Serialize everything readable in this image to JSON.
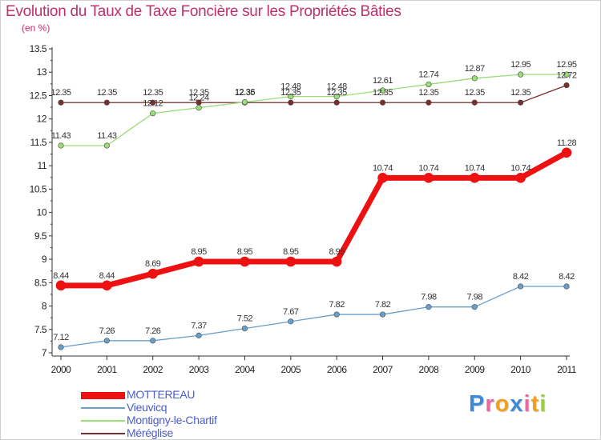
{
  "header": {
    "title": "Evolution du Taux de Taxe Foncière sur les Propriétés Bâties",
    "unit": "(en %)"
  },
  "chart_data": {
    "type": "line",
    "title": "Evolution du Taux de Taxe Foncière sur les Propriétés Bâties",
    "ylabel": "(en %)",
    "xlabel": "",
    "x": [
      "2000",
      "2001",
      "2002",
      "2003",
      "2004",
      "2005",
      "2006",
      "2007",
      "2008",
      "2009",
      "2010",
      "2011"
    ],
    "ylim": [
      7,
      13.5
    ],
    "yticks": [
      "7",
      "7.5",
      "8",
      "8.5",
      "9",
      "9.5",
      "10",
      "10.5",
      "11",
      "11.5",
      "12",
      "12.5",
      "13",
      "13.5"
    ],
    "grid": false,
    "legend_position": "bottom-left",
    "series": [
      {
        "name": "MOTTEREAU",
        "color": "#ee1111",
        "values": [
          8.44,
          8.44,
          8.69,
          8.95,
          8.95,
          8.95,
          8.95,
          10.74,
          10.74,
          10.74,
          10.74,
          11.28
        ],
        "labels": [
          "8.44",
          "8.44",
          "8.69",
          "8.95",
          "8.95",
          "8.95",
          "8.95",
          "10.74",
          "10.74",
          "10.74",
          "10.74",
          "11.28"
        ]
      },
      {
        "name": "Vieuvicq",
        "color": "#6a9fcc",
        "values": [
          7.12,
          7.26,
          7.26,
          7.37,
          7.52,
          7.67,
          7.82,
          7.82,
          7.98,
          7.98,
          8.42,
          8.42
        ],
        "labels": [
          "7.12",
          "7.26",
          "7.26",
          "7.37",
          "7.52",
          "7.67",
          "7.82",
          "7.82",
          "7.98",
          "7.98",
          "8.42",
          "8.42"
        ]
      },
      {
        "name": "Montigny-le-Chartif",
        "color": "#99dd77",
        "values": [
          11.43,
          11.43,
          12.12,
          12.24,
          12.36,
          12.48,
          12.48,
          12.61,
          12.74,
          12.87,
          12.95,
          12.95
        ],
        "labels": [
          "11.43",
          "11.43",
          "12.12",
          "12.24",
          "12.36",
          "12.48",
          "12.48",
          "12.61",
          "12.74",
          "12.87",
          "12.95",
          "12.95"
        ]
      },
      {
        "name": "Méréglise",
        "color": "#7a2e2e",
        "values": [
          12.35,
          12.35,
          12.35,
          12.35,
          12.35,
          12.35,
          12.35,
          12.35,
          12.35,
          12.35,
          12.35,
          12.72
        ],
        "labels": [
          "12.35",
          "12.35",
          "12.35",
          "12.35",
          "12.35",
          "12.35",
          "12.35",
          "12.35",
          "12.35",
          "12.35",
          "12.35",
          "12.72"
        ]
      }
    ]
  },
  "logo": {
    "letters": [
      "P",
      "r",
      "o",
      "x",
      "i",
      "t",
      "i"
    ],
    "colors": [
      "#3d8ad8",
      "#e86aa0",
      "#f0a020",
      "#3d8ad8",
      "#e86aa0",
      "#f0a020",
      "#9ccc44"
    ]
  }
}
